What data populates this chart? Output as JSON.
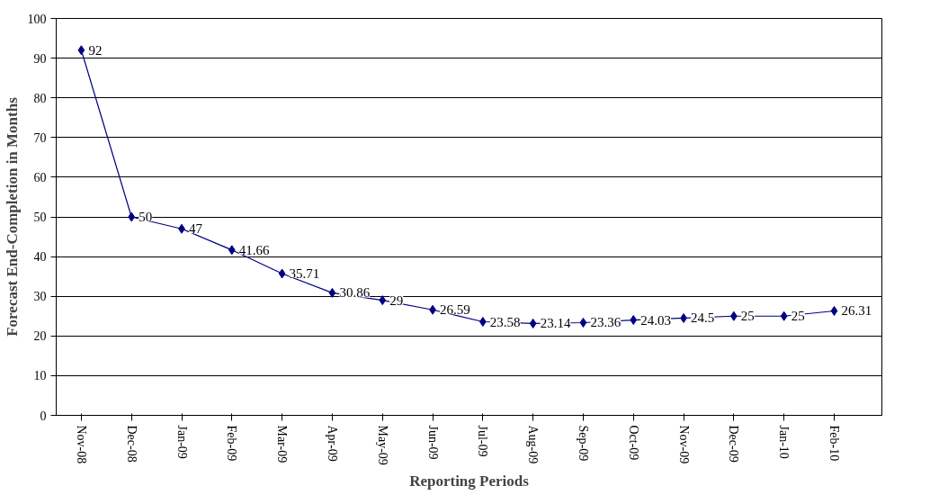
{
  "chart_data": {
    "type": "line",
    "xlabel": "Reporting Periods",
    "ylabel": "Forecast End-Completion in Months",
    "categories": [
      "Nov-08",
      "Dec-08",
      "Jan-09",
      "Feb-09",
      "Mar-09",
      "Apr-09",
      "May-09",
      "Jun-09",
      "Jul-09",
      "Aug-09",
      "Sep-09",
      "Oct-09",
      "Nov-09",
      "Dec-09",
      "Jan-10",
      "Feb-10"
    ],
    "series": [
      {
        "color": "#000080",
        "values": [
          92,
          50,
          47,
          41.66,
          35.71,
          30.86,
          29,
          26.59,
          23.58,
          23.14,
          23.36,
          24.03,
          24.5,
          25,
          25,
          26.31
        ]
      }
    ],
    "ylim": [
      0,
      100
    ],
    "yticks": [
      0,
      10,
      20,
      30,
      40,
      50,
      60,
      70,
      80,
      90,
      100
    ],
    "grid": "y",
    "marker": "diamond",
    "line_style": "solid",
    "data_labels": true
  }
}
